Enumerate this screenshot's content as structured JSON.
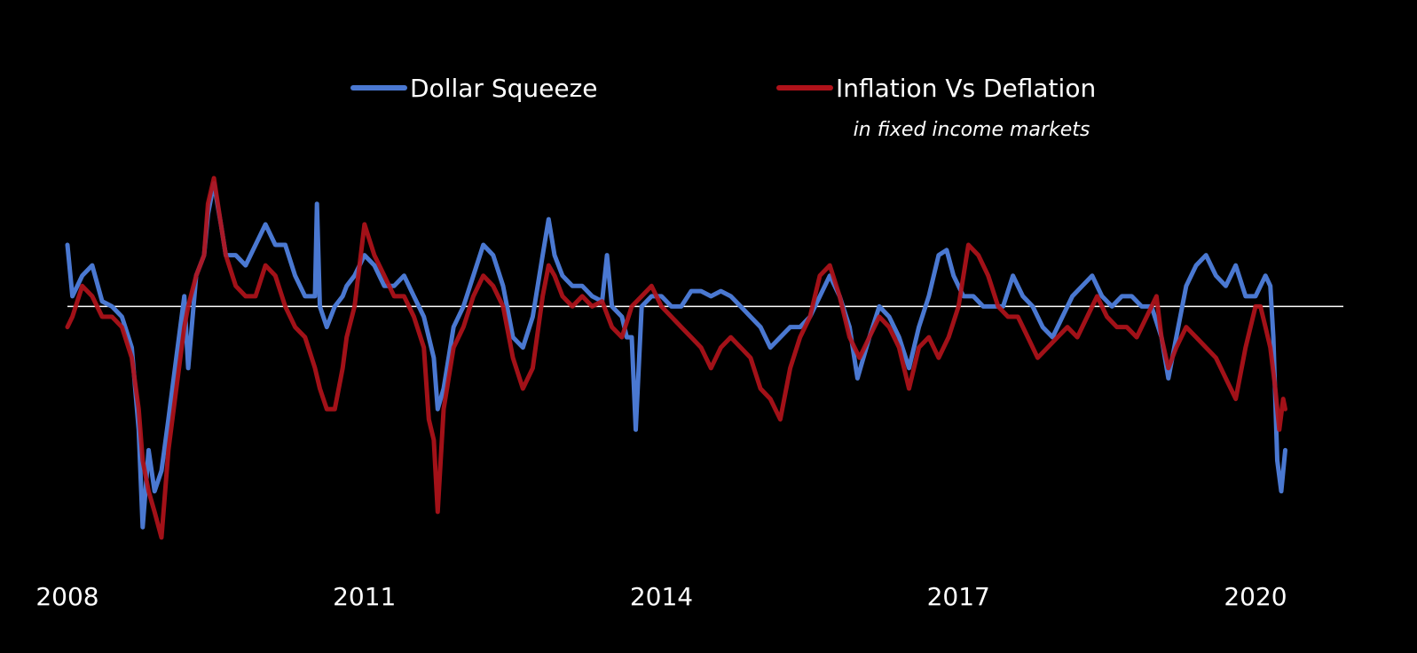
{
  "chart_data": {
    "type": "line",
    "title": "",
    "xlabel": "",
    "ylabel": "",
    "x_ticks": [
      "2008",
      "2011",
      "2014",
      "2017",
      "2020"
    ],
    "xlim": [
      2008.0,
      2021.0
    ],
    "ylim": [
      -2.2,
      1.3
    ],
    "zero_line": true,
    "grid": false,
    "legend_placement": "top-center",
    "series": [
      {
        "name": "Dollar Squeeze",
        "subtitle": "",
        "color": "#4a78d1",
        "points": [
          [
            2008.0,
            0.6
          ],
          [
            2008.05,
            0.1
          ],
          [
            2008.15,
            0.3
          ],
          [
            2008.25,
            0.4
          ],
          [
            2008.35,
            0.05
          ],
          [
            2008.45,
            0.0
          ],
          [
            2008.55,
            -0.1
          ],
          [
            2008.65,
            -0.4
          ],
          [
            2008.72,
            -1.2
          ],
          [
            2008.76,
            -2.15
          ],
          [
            2008.82,
            -1.4
          ],
          [
            2008.88,
            -1.8
          ],
          [
            2008.95,
            -1.6
          ],
          [
            2009.02,
            -1.1
          ],
          [
            2009.1,
            -0.5
          ],
          [
            2009.18,
            0.1
          ],
          [
            2009.22,
            -0.6
          ],
          [
            2009.3,
            0.3
          ],
          [
            2009.38,
            0.5
          ],
          [
            2009.42,
            0.9
          ],
          [
            2009.48,
            1.2
          ],
          [
            2009.55,
            0.8
          ],
          [
            2009.6,
            0.5
          ],
          [
            2009.7,
            0.5
          ],
          [
            2009.8,
            0.4
          ],
          [
            2009.9,
            0.6
          ],
          [
            2010.0,
            0.8
          ],
          [
            2010.1,
            0.6
          ],
          [
            2010.2,
            0.6
          ],
          [
            2010.3,
            0.3
          ],
          [
            2010.4,
            0.1
          ],
          [
            2010.5,
            0.1
          ],
          [
            2010.52,
            1.0
          ],
          [
            2010.55,
            0.0
          ],
          [
            2010.62,
            -0.2
          ],
          [
            2010.7,
            0.0
          ],
          [
            2010.78,
            0.1
          ],
          [
            2010.82,
            0.2
          ],
          [
            2010.9,
            0.3
          ],
          [
            2011.0,
            0.5
          ],
          [
            2011.1,
            0.4
          ],
          [
            2011.2,
            0.2
          ],
          [
            2011.3,
            0.2
          ],
          [
            2011.4,
            0.3
          ],
          [
            2011.5,
            0.1
          ],
          [
            2011.6,
            -0.1
          ],
          [
            2011.7,
            -0.5
          ],
          [
            2011.74,
            -1.0
          ],
          [
            2011.8,
            -0.8
          ],
          [
            2011.9,
            -0.2
          ],
          [
            2012.0,
            0.0
          ],
          [
            2012.1,
            0.3
          ],
          [
            2012.2,
            0.6
          ],
          [
            2012.3,
            0.5
          ],
          [
            2012.4,
            0.2
          ],
          [
            2012.5,
            -0.3
          ],
          [
            2012.6,
            -0.4
          ],
          [
            2012.7,
            -0.1
          ],
          [
            2012.8,
            0.5
          ],
          [
            2012.86,
            0.85
          ],
          [
            2012.92,
            0.5
          ],
          [
            2013.0,
            0.3
          ],
          [
            2013.1,
            0.2
          ],
          [
            2013.2,
            0.2
          ],
          [
            2013.3,
            0.1
          ],
          [
            2013.4,
            0.05
          ],
          [
            2013.45,
            0.5
          ],
          [
            2013.5,
            0.0
          ],
          [
            2013.6,
            -0.1
          ],
          [
            2013.65,
            -0.3
          ],
          [
            2013.7,
            -0.3
          ],
          [
            2013.74,
            -1.2
          ],
          [
            2013.8,
            0.0
          ],
          [
            2013.9,
            0.1
          ],
          [
            2014.0,
            0.1
          ],
          [
            2014.1,
            0.0
          ],
          [
            2014.2,
            0.0
          ],
          [
            2014.3,
            0.15
          ],
          [
            2014.4,
            0.15
          ],
          [
            2014.5,
            0.1
          ],
          [
            2014.6,
            0.15
          ],
          [
            2014.7,
            0.1
          ],
          [
            2014.8,
            0.0
          ],
          [
            2014.9,
            -0.1
          ],
          [
            2015.0,
            -0.2
          ],
          [
            2015.1,
            -0.4
          ],
          [
            2015.2,
            -0.3
          ],
          [
            2015.3,
            -0.2
          ],
          [
            2015.4,
            -0.2
          ],
          [
            2015.5,
            -0.1
          ],
          [
            2015.6,
            0.1
          ],
          [
            2015.7,
            0.3
          ],
          [
            2015.8,
            0.1
          ],
          [
            2015.9,
            -0.2
          ],
          [
            2015.98,
            -0.7
          ],
          [
            2016.1,
            -0.3
          ],
          [
            2016.2,
            0.0
          ],
          [
            2016.3,
            -0.1
          ],
          [
            2016.4,
            -0.3
          ],
          [
            2016.5,
            -0.6
          ],
          [
            2016.6,
            -0.2
          ],
          [
            2016.7,
            0.1
          ],
          [
            2016.8,
            0.5
          ],
          [
            2016.88,
            0.55
          ],
          [
            2016.95,
            0.3
          ],
          [
            2017.05,
            0.1
          ],
          [
            2017.15,
            0.1
          ],
          [
            2017.25,
            0.0
          ],
          [
            2017.35,
            0.0
          ],
          [
            2017.45,
            0.0
          ],
          [
            2017.55,
            0.3
          ],
          [
            2017.65,
            0.1
          ],
          [
            2017.75,
            0.0
          ],
          [
            2017.85,
            -0.2
          ],
          [
            2017.95,
            -0.3
          ],
          [
            2018.05,
            -0.1
          ],
          [
            2018.15,
            0.1
          ],
          [
            2018.25,
            0.2
          ],
          [
            2018.35,
            0.3
          ],
          [
            2018.45,
            0.1
          ],
          [
            2018.55,
            0.0
          ],
          [
            2018.65,
            0.1
          ],
          [
            2018.75,
            0.1
          ],
          [
            2018.85,
            0.0
          ],
          [
            2018.95,
            0.0
          ],
          [
            2019.05,
            -0.3
          ],
          [
            2019.12,
            -0.7
          ],
          [
            2019.2,
            -0.3
          ],
          [
            2019.3,
            0.2
          ],
          [
            2019.4,
            0.4
          ],
          [
            2019.5,
            0.5
          ],
          [
            2019.6,
            0.3
          ],
          [
            2019.7,
            0.2
          ],
          [
            2019.8,
            0.4
          ],
          [
            2019.9,
            0.1
          ],
          [
            2020.0,
            0.1
          ],
          [
            2020.05,
            0.2
          ],
          [
            2020.1,
            0.3
          ],
          [
            2020.15,
            0.2
          ],
          [
            2020.18,
            -0.3
          ],
          [
            2020.22,
            -1.5
          ],
          [
            2020.26,
            -1.8
          ],
          [
            2020.3,
            -1.4
          ]
        ]
      },
      {
        "name": "Inflation Vs Deflation",
        "subtitle": "in fixed income markets",
        "color": "#b0121a",
        "points": [
          [
            2008.0,
            -0.2
          ],
          [
            2008.05,
            -0.1
          ],
          [
            2008.15,
            0.2
          ],
          [
            2008.25,
            0.1
          ],
          [
            2008.35,
            -0.1
          ],
          [
            2008.45,
            -0.1
          ],
          [
            2008.55,
            -0.2
          ],
          [
            2008.65,
            -0.5
          ],
          [
            2008.72,
            -1.0
          ],
          [
            2008.76,
            -1.5
          ],
          [
            2008.82,
            -1.8
          ],
          [
            2008.88,
            -2.0
          ],
          [
            2008.95,
            -2.25
          ],
          [
            2009.02,
            -1.4
          ],
          [
            2009.1,
            -0.8
          ],
          [
            2009.18,
            -0.2
          ],
          [
            2009.22,
            0.0
          ],
          [
            2009.3,
            0.3
          ],
          [
            2009.38,
            0.5
          ],
          [
            2009.42,
            1.0
          ],
          [
            2009.48,
            1.25
          ],
          [
            2009.55,
            0.8
          ],
          [
            2009.6,
            0.5
          ],
          [
            2009.7,
            0.2
          ],
          [
            2009.8,
            0.1
          ],
          [
            2009.9,
            0.1
          ],
          [
            2010.0,
            0.4
          ],
          [
            2010.1,
            0.3
          ],
          [
            2010.2,
            0.0
          ],
          [
            2010.3,
            -0.2
          ],
          [
            2010.4,
            -0.3
          ],
          [
            2010.5,
            -0.6
          ],
          [
            2010.55,
            -0.8
          ],
          [
            2010.62,
            -1.0
          ],
          [
            2010.7,
            -1.0
          ],
          [
            2010.78,
            -0.6
          ],
          [
            2010.82,
            -0.3
          ],
          [
            2010.9,
            0.0
          ],
          [
            2011.0,
            0.8
          ],
          [
            2011.1,
            0.5
          ],
          [
            2011.2,
            0.3
          ],
          [
            2011.3,
            0.1
          ],
          [
            2011.4,
            0.1
          ],
          [
            2011.5,
            -0.1
          ],
          [
            2011.6,
            -0.4
          ],
          [
            2011.65,
            -1.1
          ],
          [
            2011.7,
            -1.3
          ],
          [
            2011.74,
            -2.0
          ],
          [
            2011.8,
            -1.0
          ],
          [
            2011.9,
            -0.4
          ],
          [
            2012.0,
            -0.2
          ],
          [
            2012.1,
            0.1
          ],
          [
            2012.2,
            0.3
          ],
          [
            2012.3,
            0.2
          ],
          [
            2012.4,
            0.0
          ],
          [
            2012.5,
            -0.5
          ],
          [
            2012.6,
            -0.8
          ],
          [
            2012.7,
            -0.6
          ],
          [
            2012.8,
            0.1
          ],
          [
            2012.86,
            0.4
          ],
          [
            2012.92,
            0.3
          ],
          [
            2013.0,
            0.1
          ],
          [
            2013.1,
            0.0
          ],
          [
            2013.2,
            0.1
          ],
          [
            2013.3,
            0.0
          ],
          [
            2013.4,
            0.05
          ],
          [
            2013.5,
            -0.2
          ],
          [
            2013.6,
            -0.3
          ],
          [
            2013.7,
            0.0
          ],
          [
            2013.8,
            0.1
          ],
          [
            2013.9,
            0.2
          ],
          [
            2014.0,
            0.0
          ],
          [
            2014.1,
            -0.1
          ],
          [
            2014.2,
            -0.2
          ],
          [
            2014.3,
            -0.3
          ],
          [
            2014.4,
            -0.4
          ],
          [
            2014.5,
            -0.6
          ],
          [
            2014.6,
            -0.4
          ],
          [
            2014.7,
            -0.3
          ],
          [
            2014.8,
            -0.4
          ],
          [
            2014.9,
            -0.5
          ],
          [
            2015.0,
            -0.8
          ],
          [
            2015.1,
            -0.9
          ],
          [
            2015.2,
            -1.1
          ],
          [
            2015.3,
            -0.6
          ],
          [
            2015.4,
            -0.3
          ],
          [
            2015.5,
            -0.1
          ],
          [
            2015.6,
            0.3
          ],
          [
            2015.7,
            0.4
          ],
          [
            2015.8,
            0.1
          ],
          [
            2015.9,
            -0.3
          ],
          [
            2016.0,
            -0.5
          ],
          [
            2016.1,
            -0.3
          ],
          [
            2016.2,
            -0.1
          ],
          [
            2016.3,
            -0.2
          ],
          [
            2016.4,
            -0.4
          ],
          [
            2016.5,
            -0.8
          ],
          [
            2016.6,
            -0.4
          ],
          [
            2016.7,
            -0.3
          ],
          [
            2016.8,
            -0.5
          ],
          [
            2016.9,
            -0.3
          ],
          [
            2017.0,
            0.0
          ],
          [
            2017.1,
            0.6
          ],
          [
            2017.2,
            0.5
          ],
          [
            2017.3,
            0.3
          ],
          [
            2017.4,
            0.0
          ],
          [
            2017.5,
            -0.1
          ],
          [
            2017.6,
            -0.1
          ],
          [
            2017.7,
            -0.3
          ],
          [
            2017.8,
            -0.5
          ],
          [
            2017.9,
            -0.4
          ],
          [
            2018.0,
            -0.3
          ],
          [
            2018.1,
            -0.2
          ],
          [
            2018.2,
            -0.3
          ],
          [
            2018.3,
            -0.1
          ],
          [
            2018.4,
            0.1
          ],
          [
            2018.5,
            -0.1
          ],
          [
            2018.6,
            -0.2
          ],
          [
            2018.7,
            -0.2
          ],
          [
            2018.8,
            -0.3
          ],
          [
            2018.9,
            -0.1
          ],
          [
            2019.0,
            0.1
          ],
          [
            2019.05,
            -0.3
          ],
          [
            2019.12,
            -0.6
          ],
          [
            2019.2,
            -0.4
          ],
          [
            2019.3,
            -0.2
          ],
          [
            2019.4,
            -0.3
          ],
          [
            2019.5,
            -0.4
          ],
          [
            2019.6,
            -0.5
          ],
          [
            2019.7,
            -0.7
          ],
          [
            2019.8,
            -0.9
          ],
          [
            2019.9,
            -0.4
          ],
          [
            2020.0,
            0.0
          ],
          [
            2020.05,
            0.0
          ],
          [
            2020.1,
            -0.2
          ],
          [
            2020.15,
            -0.4
          ],
          [
            2020.2,
            -0.8
          ],
          [
            2020.24,
            -1.2
          ],
          [
            2020.28,
            -0.9
          ],
          [
            2020.3,
            -1.0
          ]
        ]
      }
    ]
  }
}
